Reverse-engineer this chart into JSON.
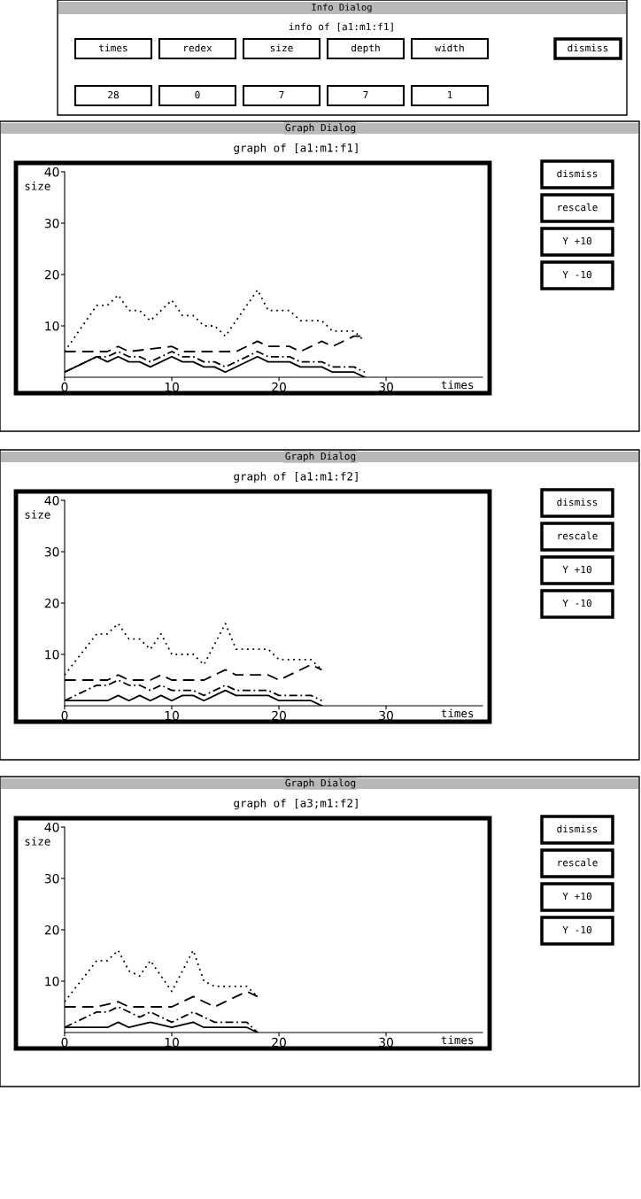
{
  "chart_data": [
    {
      "type": "other",
      "title": "Info Dialog",
      "subtitle": "info of [a1:m1:f1]",
      "annotations": [
        "times",
        "redex",
        "size",
        "depth",
        "width",
        "dismiss",
        "28",
        "0",
        "7",
        "7",
        "1"
      ]
    },
    {
      "type": "line",
      "subtitle": "Graph Dialog",
      "title": "graph of [a1:m1:f1]",
      "xlabel": "times",
      "ylabel": "size",
      "xlim": [
        0,
        39
      ],
      "xticks": [
        0,
        10,
        20,
        30
      ],
      "ylim": [
        0,
        40
      ],
      "yticks": [
        10,
        20,
        30,
        40
      ],
      "marker": "none",
      "legend": false,
      "grid": false,
      "series": [
        {
          "color": "#000000",
          "line_style": "dotted",
          "x": [
            0,
            3,
            4,
            5,
            6,
            7,
            8,
            10,
            11,
            12,
            13,
            14,
            15,
            18,
            19,
            21,
            22,
            24,
            25,
            27,
            28
          ],
          "values": [
            5,
            14,
            14,
            16,
            13,
            13,
            11,
            15,
            12,
            12,
            10,
            10,
            8,
            17,
            13,
            13,
            11,
            11,
            9,
            9,
            7
          ]
        },
        {
          "color": "#000000",
          "line_style": "dashed",
          "x": [
            0,
            4,
            5,
            6,
            10,
            11,
            16,
            17,
            18,
            19,
            21,
            22,
            24,
            25,
            27,
            28
          ],
          "values": [
            5,
            5,
            6,
            5,
            6,
            5,
            5,
            6,
            7,
            6,
            6,
            5,
            7,
            6,
            8,
            8
          ]
        },
        {
          "color": "#000000",
          "line_style": "dashdot",
          "x": [
            0,
            3,
            4,
            5,
            6,
            7,
            8,
            10,
            11,
            12,
            13,
            14,
            15,
            18,
            19,
            21,
            22,
            24,
            25,
            27,
            28
          ],
          "values": [
            1,
            4,
            4,
            5,
            4,
            4,
            3,
            5,
            4,
            4,
            3,
            3,
            2,
            5,
            4,
            4,
            3,
            3,
            2,
            2,
            1
          ]
        },
        {
          "color": "#000000",
          "line_style": "solid",
          "x": [
            0,
            3,
            4,
            5,
            6,
            7,
            8,
            10,
            11,
            12,
            13,
            14,
            15,
            18,
            19,
            21,
            22,
            24,
            25,
            27,
            28
          ],
          "values": [
            1,
            4,
            3,
            4,
            3,
            3,
            2,
            4,
            3,
            3,
            2,
            2,
            1,
            4,
            3,
            3,
            2,
            2,
            1,
            1,
            0
          ]
        }
      ],
      "annotations": [
        "dismiss",
        "rescale",
        "Y +10",
        "Y -10"
      ]
    },
    {
      "type": "line",
      "subtitle": "Graph Dialog",
      "title": "graph of [a1:m1:f2]",
      "xlabel": "times",
      "ylabel": "size",
      "xlim": [
        0,
        39
      ],
      "xticks": [
        0,
        10,
        20,
        30
      ],
      "ylim": [
        0,
        40
      ],
      "yticks": [
        10,
        20,
        30,
        40
      ],
      "marker": "none",
      "legend": false,
      "grid": false,
      "series": [
        {
          "color": "#000000",
          "line_style": "dotted",
          "x": [
            0,
            3,
            4,
            5,
            6,
            7,
            8,
            9,
            10,
            12,
            13,
            15,
            16,
            19,
            20,
            23,
            24
          ],
          "values": [
            6,
            14,
            14,
            16,
            13,
            13,
            11,
            14,
            10,
            10,
            8,
            16,
            11,
            11,
            9,
            9,
            7
          ]
        },
        {
          "color": "#000000",
          "line_style": "dashed",
          "x": [
            0,
            4,
            5,
            6,
            8,
            9,
            10,
            13,
            15,
            16,
            19,
            20,
            23,
            24
          ],
          "values": [
            5,
            5,
            6,
            5,
            5,
            6,
            5,
            5,
            7,
            6,
            6,
            5,
            8,
            7
          ]
        },
        {
          "color": "#000000",
          "line_style": "dashdot",
          "x": [
            0,
            3,
            4,
            5,
            6,
            7,
            8,
            9,
            10,
            12,
            13,
            15,
            16,
            19,
            20,
            23,
            24
          ],
          "values": [
            1,
            4,
            4,
            5,
            4,
            4,
            3,
            4,
            3,
            3,
            2,
            4,
            3,
            3,
            2,
            2,
            1
          ]
        },
        {
          "color": "#000000",
          "line_style": "solid",
          "x": [
            0,
            4,
            5,
            6,
            7,
            8,
            9,
            10,
            11,
            12,
            13,
            15,
            16,
            19,
            20,
            23,
            24
          ],
          "values": [
            1,
            1,
            2,
            1,
            2,
            1,
            2,
            1,
            2,
            2,
            1,
            3,
            2,
            2,
            1,
            1,
            0
          ]
        }
      ],
      "annotations": [
        "dismiss",
        "rescale",
        "Y +10",
        "Y -10"
      ]
    },
    {
      "type": "line",
      "subtitle": "Graph Dialog",
      "title": "graph of [a3;m1:f2]",
      "xlabel": "times",
      "ylabel": "size",
      "xlim": [
        0,
        39
      ],
      "xticks": [
        0,
        10,
        20,
        30
      ],
      "ylim": [
        0,
        40
      ],
      "yticks": [
        10,
        20,
        30,
        40
      ],
      "marker": "none",
      "legend": false,
      "grid": false,
      "series": [
        {
          "color": "#000000",
          "line_style": "dotted",
          "x": [
            0,
            3,
            4,
            5,
            6,
            7,
            8,
            10,
            12,
            13,
            14,
            17,
            18
          ],
          "values": [
            6,
            14,
            14,
            16,
            12,
            11,
            14,
            8,
            16,
            10,
            9,
            9,
            7
          ]
        },
        {
          "color": "#000000",
          "line_style": "dashed",
          "x": [
            0,
            3,
            5,
            6,
            10,
            12,
            13,
            14,
            16,
            17,
            18
          ],
          "values": [
            5,
            5,
            6,
            5,
            5,
            7,
            6,
            5,
            7,
            8,
            7
          ]
        },
        {
          "color": "#000000",
          "line_style": "dashdot",
          "x": [
            0,
            3,
            4,
            5,
            6,
            7,
            8,
            10,
            12,
            13,
            14,
            17,
            18
          ],
          "values": [
            1,
            4,
            4,
            5,
            4,
            3,
            4,
            2,
            4,
            3,
            2,
            2,
            0
          ]
        },
        {
          "color": "#000000",
          "line_style": "solid",
          "x": [
            0,
            4,
            5,
            6,
            8,
            10,
            12,
            13,
            17,
            18
          ],
          "values": [
            1,
            1,
            2,
            1,
            2,
            1,
            2,
            1,
            1,
            0
          ]
        }
      ],
      "annotations": [
        "dismiss",
        "rescale",
        "Y +10",
        "Y -10"
      ]
    }
  ]
}
